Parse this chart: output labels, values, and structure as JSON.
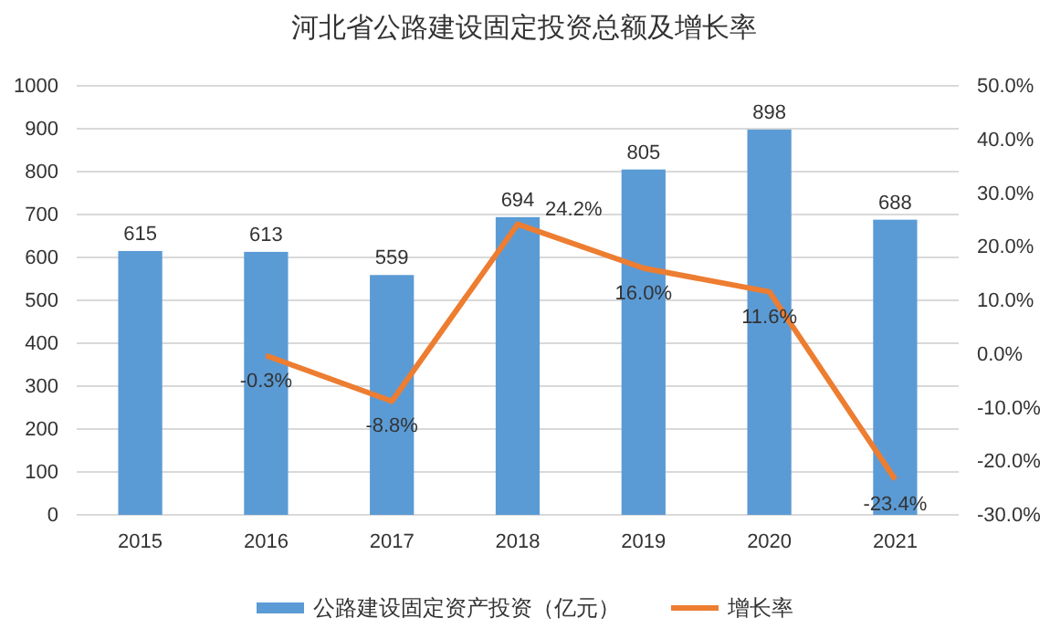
{
  "chart_data": {
    "type": "bar",
    "title": "河北省公路建设固定投资总额及增长率",
    "categories": [
      "2015",
      "2016",
      "2017",
      "2018",
      "2019",
      "2020",
      "2021"
    ],
    "series": [
      {
        "name": "公路建设固定资产投资（亿元）",
        "type": "bar",
        "color": "#5b9bd5",
        "values": [
          615,
          613,
          559,
          694,
          805,
          898,
          688
        ],
        "value_labels": [
          "615",
          "613",
          "559",
          "694",
          "805",
          "898",
          "688"
        ]
      },
      {
        "name": "增长率",
        "type": "line",
        "axis": "y2",
        "color": "#ed7d31",
        "values": [
          null,
          -0.3,
          -8.8,
          24.2,
          16.0,
          11.6,
          -23.4
        ],
        "value_labels": [
          null,
          "-0.3%",
          "-8.8%",
          "24.2%",
          "16.0%",
          "11.6%",
          "-23.4%"
        ]
      }
    ],
    "ylim": [
      0,
      1000
    ],
    "yticks": [
      0,
      100,
      200,
      300,
      400,
      500,
      600,
      700,
      800,
      900,
      1000
    ],
    "y2lim": [
      -30,
      50
    ],
    "y2ticks": [
      {
        "value": -30,
        "label": "-30.0%"
      },
      {
        "value": -20,
        "label": "-20.0%"
      },
      {
        "value": -10,
        "label": "-10.0%"
      },
      {
        "value": 0,
        "label": "0.0%"
      },
      {
        "value": 10,
        "label": "10.0%"
      },
      {
        "value": 20,
        "label": "20.0%"
      },
      {
        "value": 30,
        "label": "30.0%"
      },
      {
        "value": 40,
        "label": "40.0%"
      },
      {
        "value": 50,
        "label": "50.0%"
      }
    ],
    "grid": "y",
    "legend": "bottom",
    "marker": "none",
    "line_style": "solid"
  }
}
